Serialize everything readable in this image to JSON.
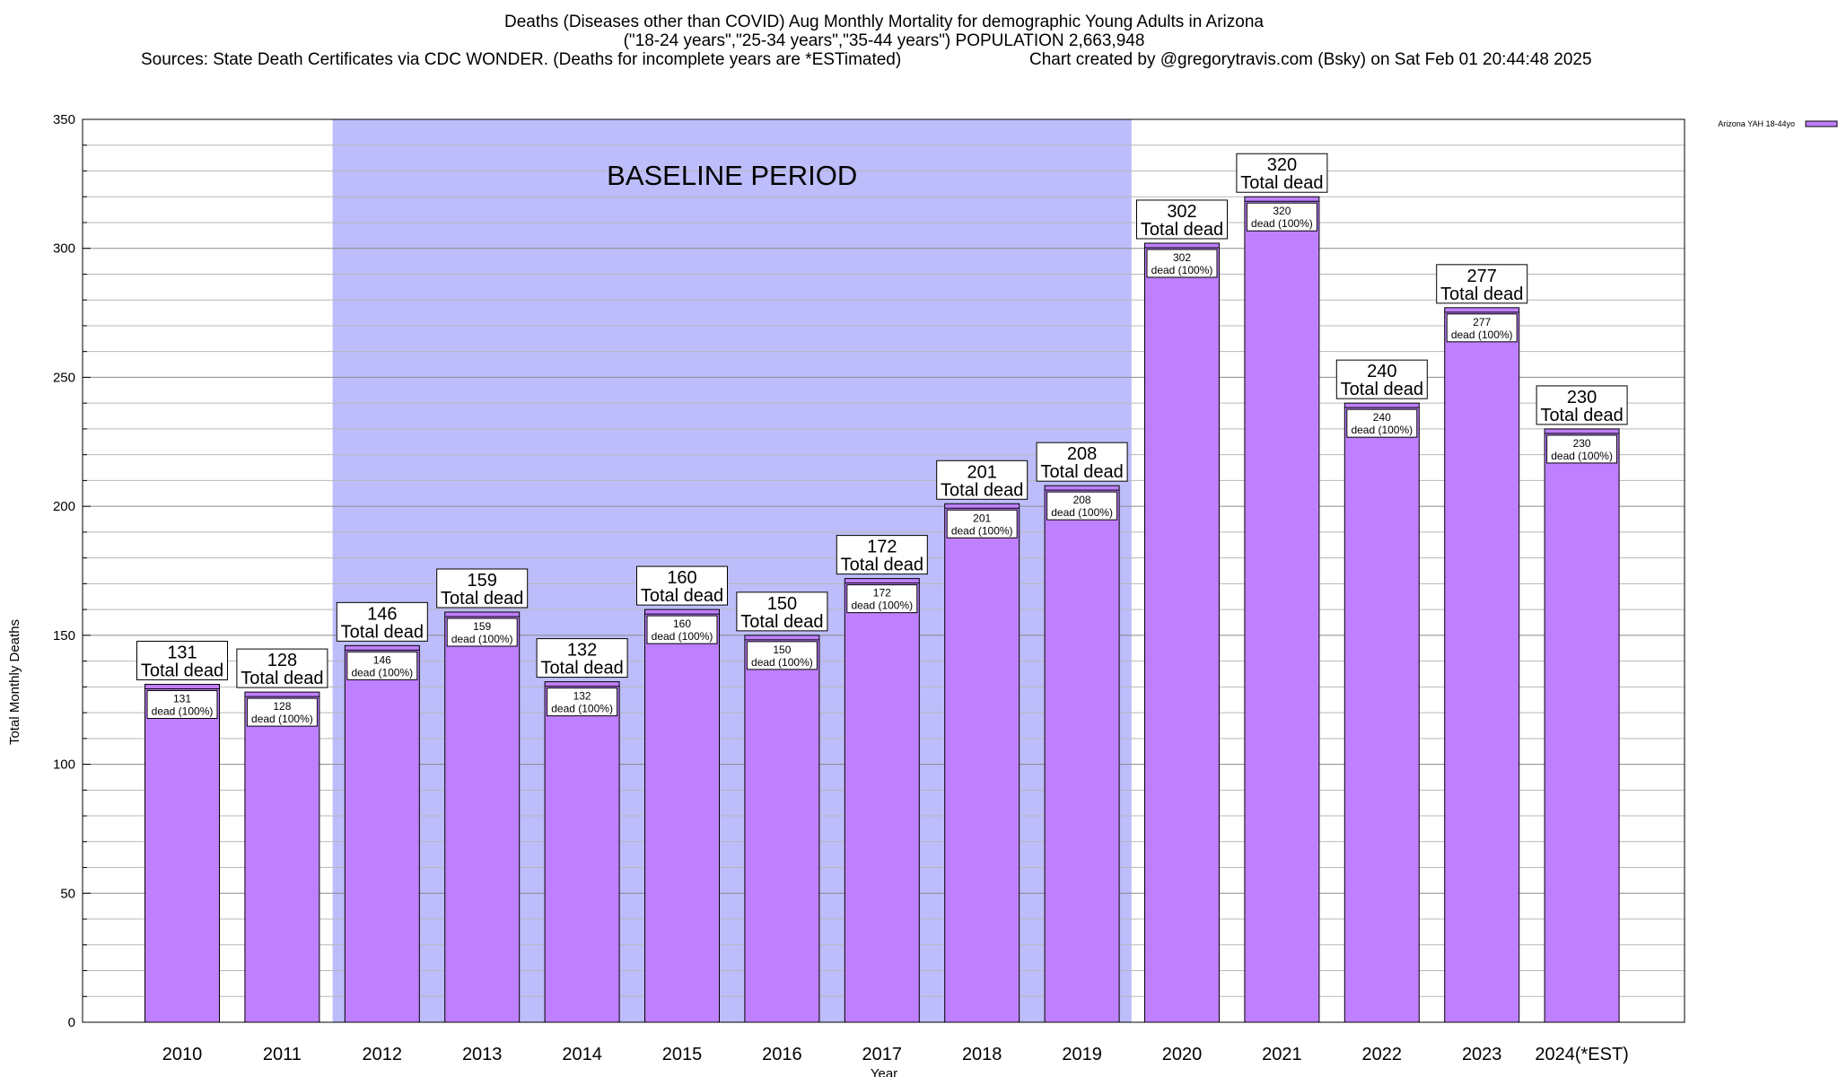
{
  "header": {
    "title_line1": "Deaths (Diseases other than COVID) Aug Monthly Mortality for demographic Young Adults in Arizona",
    "title_line2": "(\"18-24 years\",\"25-34 years\",\"35-44 years\") POPULATION 2,663,948",
    "sources": "Sources: State Death Certificates via CDC WONDER. (Deaths for incomplete years are *ESTimated)",
    "credit": "Chart created by @gregorytravis.com (Bsky) on Sat Feb 01 20:44:48 2025"
  },
  "chart_data": {
    "type": "bar",
    "xlabel": "Year",
    "ylabel": "Total Monthly Deaths",
    "ylim": [
      0,
      350
    ],
    "yticks": [
      0,
      50,
      100,
      150,
      200,
      250,
      300,
      350
    ],
    "ytick_labels": [
      "0",
      "50",
      "100",
      "150",
      "200",
      "250",
      "300",
      "350"
    ],
    "grid": true,
    "legend": {
      "placement": "top-right",
      "label": "Arizona YAH 18-44yo"
    },
    "categories": [
      "2010",
      "2011",
      "2012",
      "2013",
      "2014",
      "2015",
      "2016",
      "2017",
      "2018",
      "2019",
      "2020",
      "2021",
      "2022",
      "2023",
      "2024(*EST)"
    ],
    "series": [
      {
        "name": "Arizona YAH 18-44yo",
        "values": [
          131,
          128,
          146,
          159,
          132,
          160,
          150,
          172,
          201,
          208,
          302,
          320,
          240,
          277,
          230
        ]
      }
    ],
    "total_labels": [
      "131",
      "128",
      "146",
      "159",
      "132",
      "160",
      "150",
      "172",
      "201",
      "208",
      "302",
      "320",
      "240",
      "277",
      "230"
    ],
    "total_suffix": "Total dead",
    "inner_labels": [
      "131",
      "128",
      "146",
      "159",
      "132",
      "160",
      "150",
      "172",
      "201",
      "208",
      "302",
      "320",
      "240",
      "277",
      "230"
    ],
    "inner_suffix": "dead (100%)",
    "annotation": {
      "label": "BASELINE PERIOD",
      "from_category": "2012",
      "to_category": "2019"
    },
    "colors": {
      "bar": "#bf80ff",
      "baseline": "#bdbdfb",
      "bar_stroke": "#000000"
    }
  }
}
